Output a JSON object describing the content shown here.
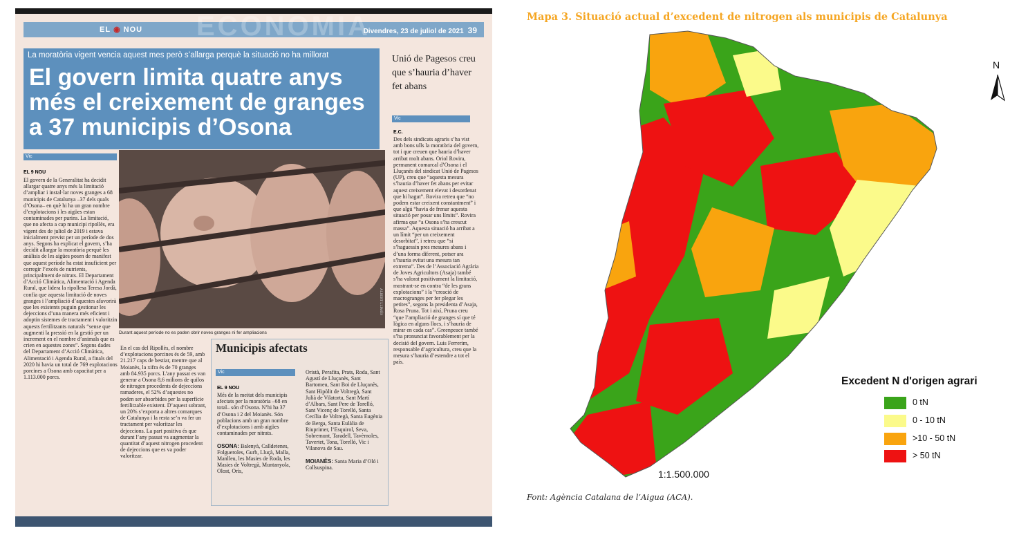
{
  "newspaper": {
    "masthead": {
      "logo_left": "EL",
      "logo_right": "NOU",
      "ghost": "ECONOMIA",
      "date": "Divendres, 23 de juliol de 2021",
      "page": "39"
    },
    "kicker": "La moratòria vigent vencia aquest mes però s’allarga perquè la situació no ha millorat",
    "headline": "El govern limita quatre anys més el creixement de granges a 37 municipis d’Osona",
    "tag": "Vic",
    "byline": "EL 9 NOU",
    "col1": "El govern de la Generalitat ha decidit allargar quatre anys més la limitació d’ampliar i instal·lar noves granges a 68 municipis de Catalunya –37 dels quals d’Osona– en què hi ha un gran nombre d’explotacions i les aigües estan contaminades per purins. La limitació, que no afecta a cap municipi ripollès, era vigent des de juliol de 2019 i estava inicialment previst per un període de dos anys. Segons ha explicat el govern, s’ha decidit allargar la moratòria perquè les anàlisis de les aigües posen de manifest que aquest període ha estat insuficient per corregir l’excés de nutrients, principalment de nitrats. El Departament d’Acció Climàtica, Alimentació i Agenda Rural, que lidera la ripollesa Teresa Jordà, confia que aquesta limitació de noves granges i l’ampliació d’aquestes afavorirà que les existents puguin gestionar les dejeccions d’una manera més eficient i adoptin sistemes de tractament i valoritzin aquests fertilitzants naturals “sense que augmenti la pressió en la gestió per un increment en el nombre d’animals que es crien en aquestes zones”. Segons dades del Departament d’Acció Climàtica, Alimentació i Agenda Rural, a finals del 2020 hi havia un total de 769 explotacions porcines a Osona amb capacitat per a 1.113.000 porcs.",
    "col2": "En el cas del Ripollès, el nombre d’explotacions porcines és de 59, amb 21.217 caps de bestiar, mentre que al Moianès, la xifra és de 70 granges amb 84.935 porcs. L’any passat es van generar a Osona 8,6 milions de quilos de nitrogen procedents de dejeccions ramaderes, el 52% d’aquestes no poden ser absorbides per la superfície fertilitzable existent. D’aquest sobrant, un 20% s’exporta a altres comarques de Catalunya i la resta se’n va fer un tractament per valoritzar les dejeccions. La part positiva és que durant l’any passat va augmentar la quantitat d’aquest nitrogen procedent de dejeccions que es va poder valoritzar.",
    "photo_caption": "Durant aquest període no es poden obrir noves granges ni fer ampliacions",
    "photo_credit": "ALBERT LLIMÓS",
    "box": {
      "title": "Municipis afectats",
      "tag": "Vic",
      "byline": "EL 9 NOU",
      "intro": "Més de la meitat dels municipis afectats per la moratòria –68 en total– són d’Osona. N’hi ha 37 d’Osona i 2 del Moianès. Són poblacions amb un gran nombre d’explotacions i amb aigües contaminades per nitrats.",
      "osona_label": "OSONA:",
      "osona_list1": "Balenyà, Calldetenes, Folgueroles, Gurb, Lluçà, Malla, Manlleu, les Masies de Roda, les Masies de Voltregà, Muntanyola, Olost, Orís,",
      "osona_list2": "Oristà, Perafita, Prats, Roda, Sant Agustí de Lluçanès, Sant Bartomeu, Sant Boi de Lluçanès, Sant Hipòlit de Voltregà, Sant Julià de Vilatorta, Sant Martí d’Albars, Sant Pere de Torelló, Sant Vicenç de Torelló, Santa Cecília de Voltregà, Santa Eugènia de Berga, Santa Eulàlia de Riuprimer, l’Esquirol, Seva, Sobremunt, Taradell, Tavèrnoles, Tavertet, Tona, Torelló, Vic i Vilanova de Sau.",
      "moianes_label": "MOIANÈS:",
      "moianes_list": "Santa Maria d’Oló i Collsuspina."
    },
    "side": {
      "title": "Unió de Pagesos creu que s’hauria d’haver fet abans",
      "tag": "Vic",
      "byline": "E.C.",
      "text": "Des dels sindicats agraris s’ha vist amb bons ulls la moratòria del govern, tot i que creuen que hauria d’haver arribat molt abans. Oriol Rovira, permanent comarcal d’Osona i el Lluçanès del sindicat Unió de Pagesos (UP), creu que “aquesta mesura s’hauria d’haver fet abans per evitar aquest creixement elevat i desordenat que hi hagut”. Rovira retreu que “no podem estar creixent constantment” i que algú “havia de frenar aquesta situació per posar uns límits”. Rovira afirma que “a Osona s’ha crescut massa”. Aquesta situació ha arribat a un límit “per un creixement desorbitat”, i retreu que “si s’haguessin pres mesures abans i d’una forma diferent, potser ara s’hauria evitat una mesura tan extrema”. Des de l’Associació Agrària de Joves Agricultors (Asaja) també s’ha valorat positivament la limitació, mostrant-se en contra “de les grans explotacions” i la “creació de macrogranges per fer plegar les petites”, segons la presidenta d’Asaja, Rosa Pruna. Tot i així, Pruna creu “que l’ampliació de granges sí que té lògica en alguns llocs, i s’hauria de mirar en cada cas”. Greenpeace també s’ha pronunciat favorablement per la decisió del govern. Luis Ferrerim, responsable d’agricultura, creu que la mesura s’hauria d’estendre a tot el país."
    }
  },
  "map": {
    "title": "Mapa 3. Situació actual d’excedent de nitrogen als municipis de Catalunya",
    "north": "N",
    "scale": "1:1.500.000",
    "source": "Font: Agència Catalana de l’Aigua (ACA).",
    "legend": {
      "title": "Excedent N d'origen agrari",
      "items": [
        {
          "label": "0 tN",
          "color": "#3aa41a"
        },
        {
          "label": "0 - 10 tN",
          "color": "#fbfa8a"
        },
        {
          "label": ">10 - 50 tN",
          "color": "#f9a40e"
        },
        {
          "label": "> 50 tN",
          "color": "#ee1212"
        }
      ]
    }
  }
}
